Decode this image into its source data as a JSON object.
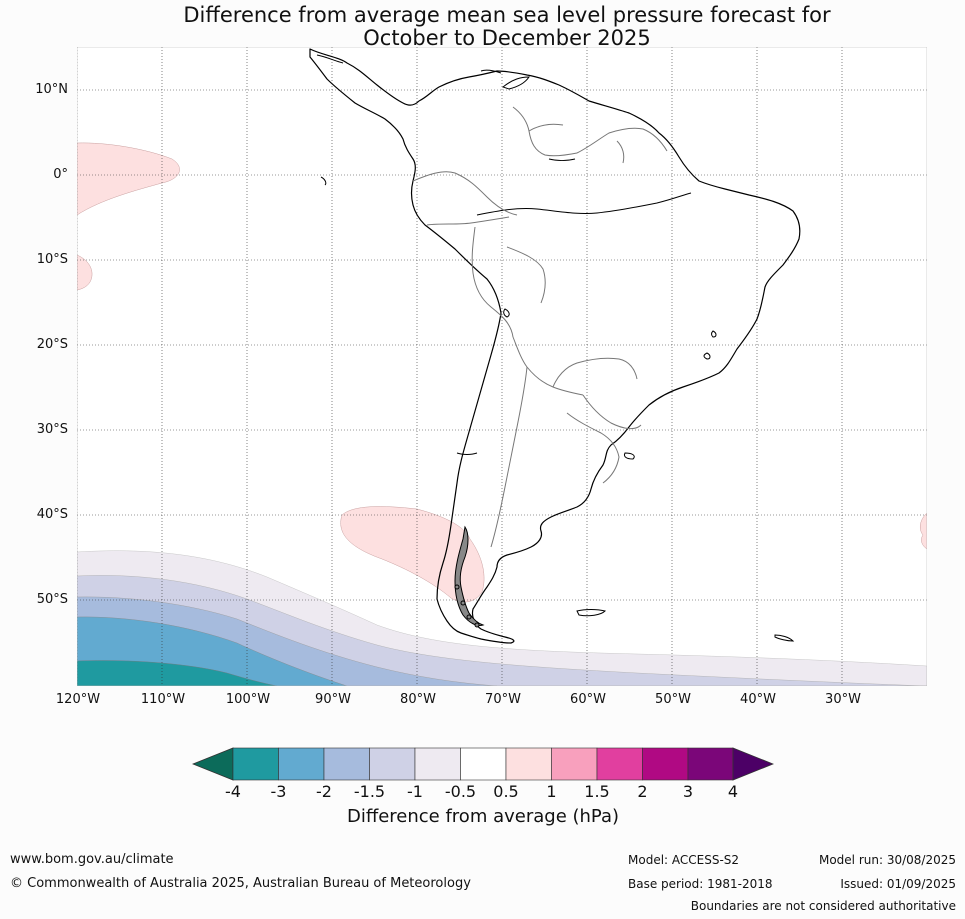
{
  "title_line1": "Difference from average mean sea level pressure forecast for",
  "title_line2": "October to December 2025",
  "lat_labels": [
    "10°N",
    "0°",
    "10°S",
    "20°S",
    "30°S",
    "40°S",
    "50°S"
  ],
  "lon_labels": [
    "120°W",
    "110°W",
    "100°W",
    "90°W",
    "80°W",
    "70°W",
    "60°W",
    "50°W",
    "40°W",
    "30°W"
  ],
  "colorbar": {
    "title": "Difference from average (hPa)",
    "ticks": [
      "-4",
      "-3",
      "-2",
      "-1.5",
      "-1",
      "-0.5",
      "0.5",
      "1",
      "1.5",
      "2",
      "3",
      "4"
    ],
    "colors": [
      "#0c6b5a",
      "#1f9aa0",
      "#62aad0",
      "#a6bbdd",
      "#cfd1e6",
      "#eeeaf1",
      "#ffffff",
      "#fde0e0",
      "#f8a0bd",
      "#e13f9f",
      "#b00983",
      "#7b0679",
      "#4c0066"
    ]
  },
  "footer": {
    "website": "www.bom.gov.au/climate",
    "copyright": "© Commonwealth of Australia 2025, Australian Bureau of Meteorology",
    "model": "Model: ACCESS-S2",
    "base_period": "Base period: 1981-2018",
    "model_run": "Model run: 30/08/2025",
    "issued": "Issued: 01/09/2025",
    "disclaimer": "Boundaries are not considered authoritative"
  }
}
